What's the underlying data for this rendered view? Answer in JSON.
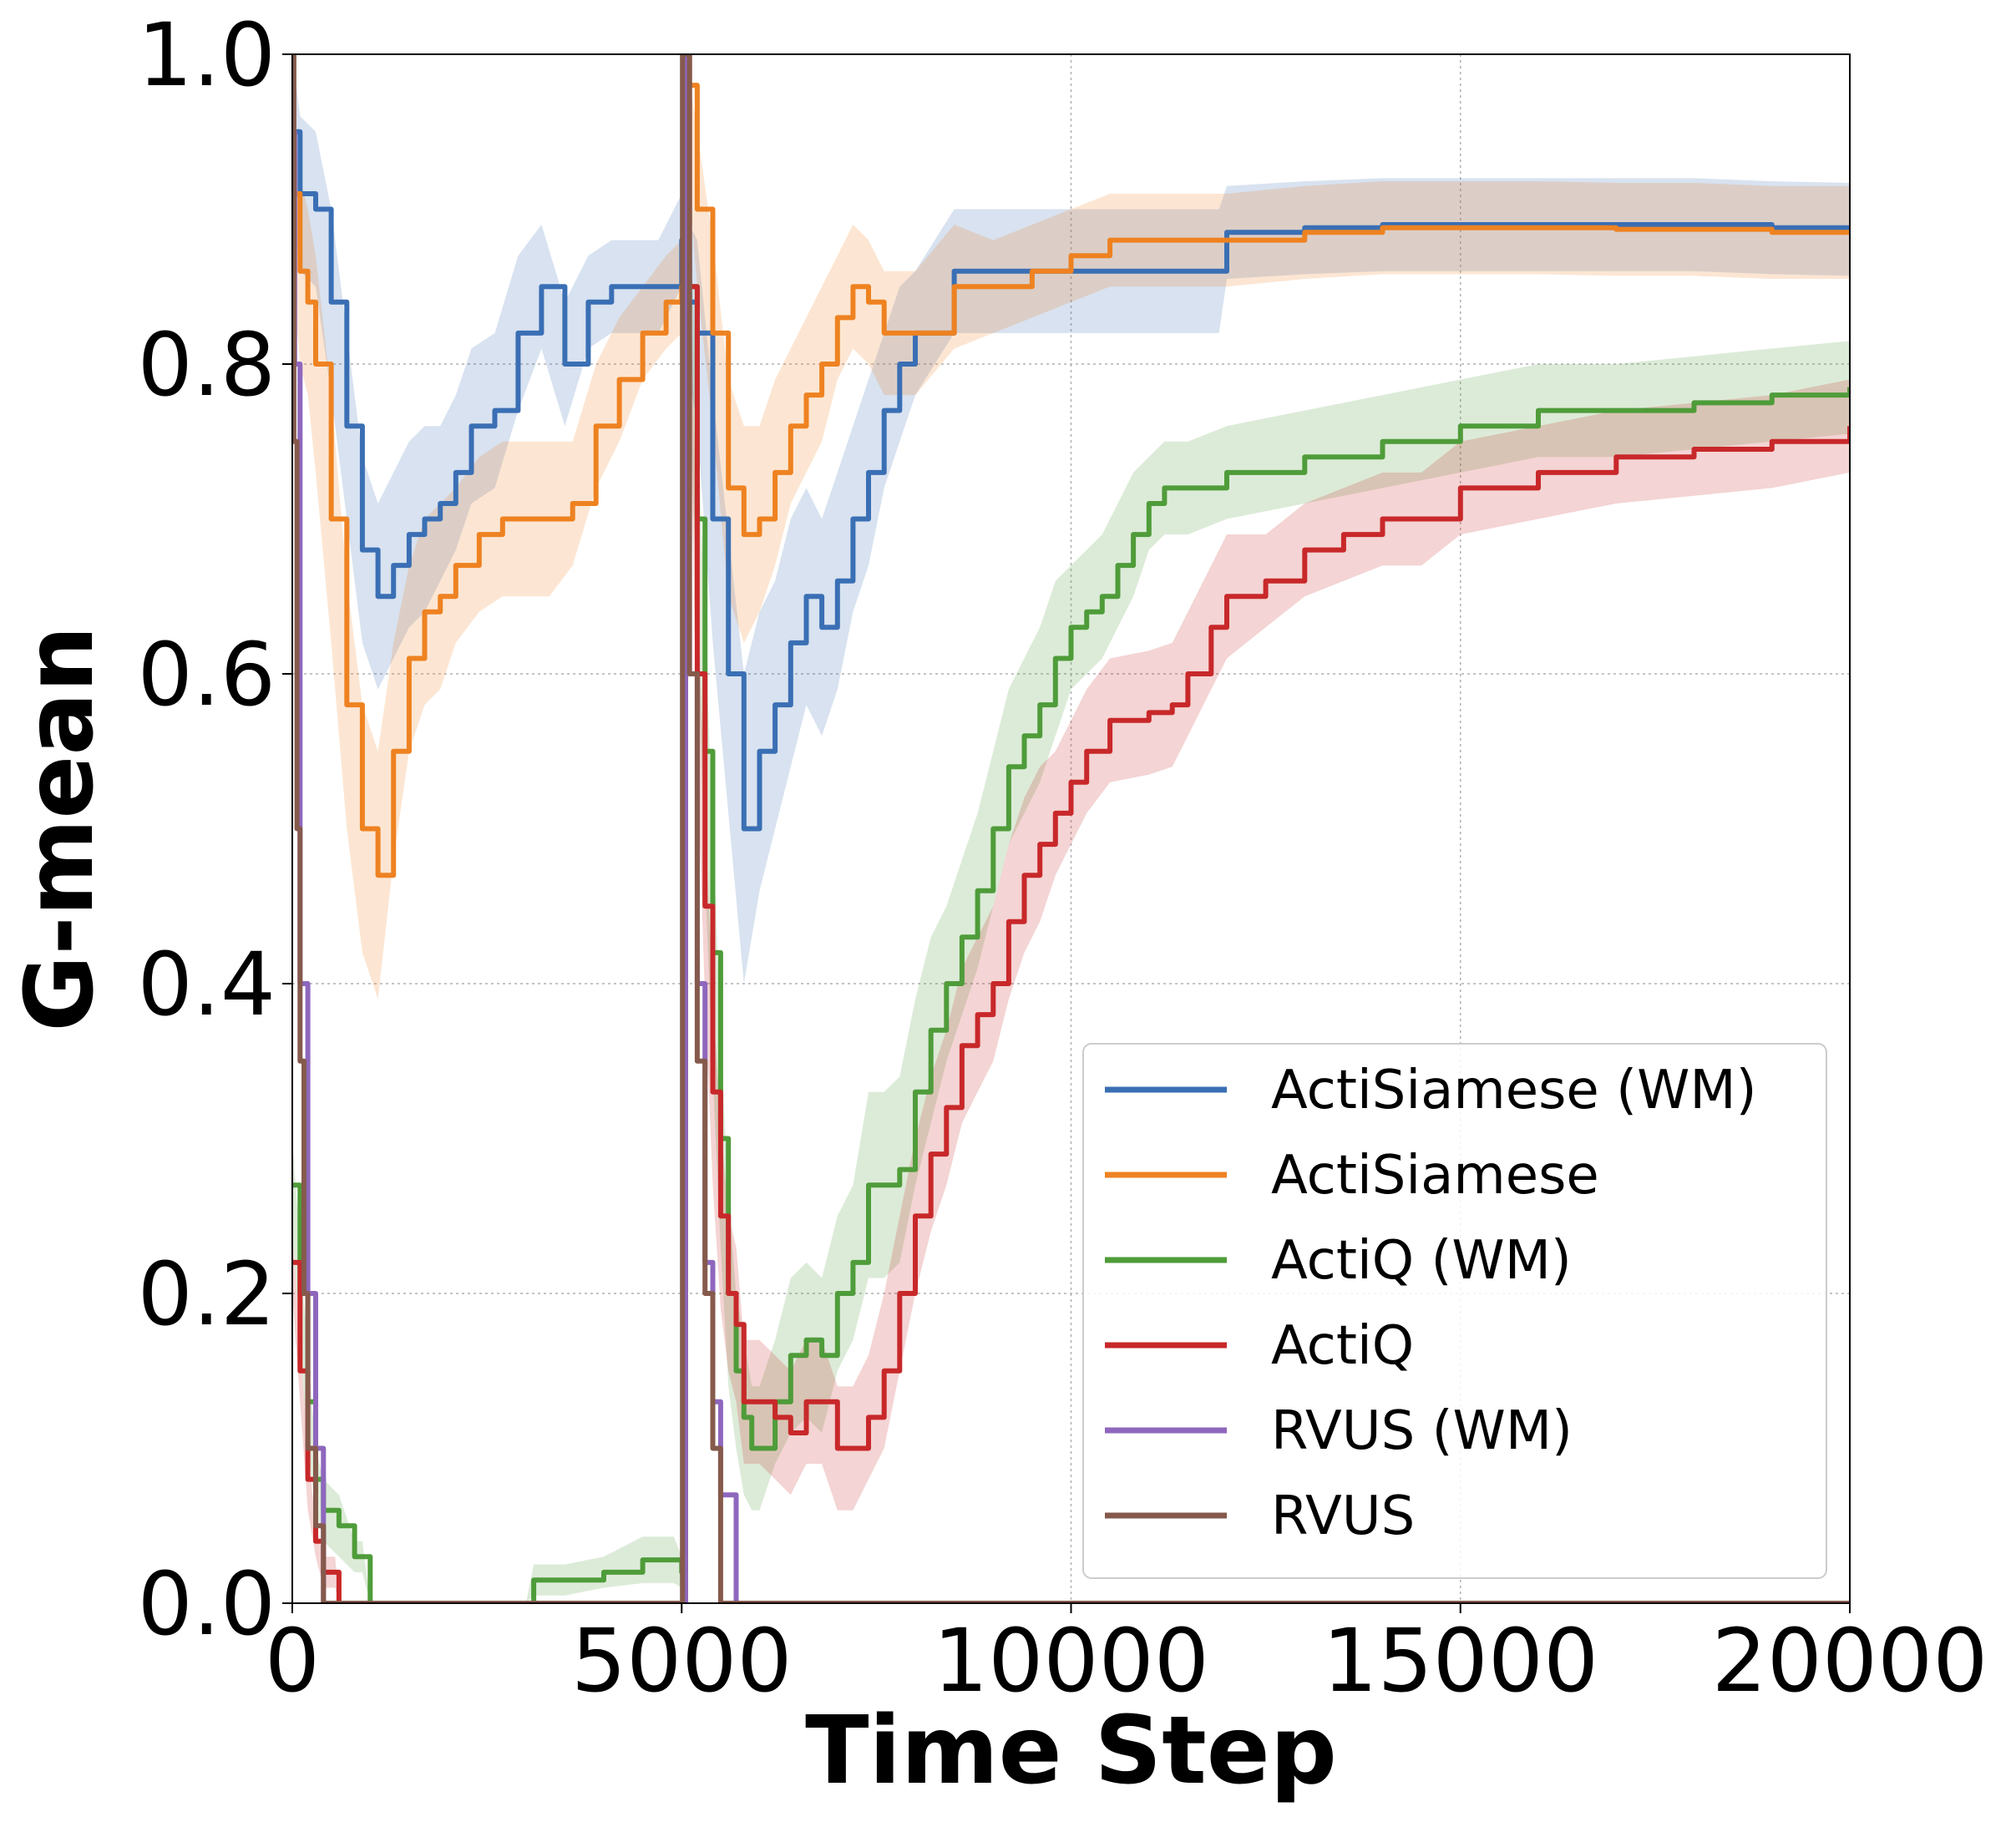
{
  "chart_data": {
    "type": "line",
    "title": "",
    "xlabel": "Time Step",
    "ylabel": "G-mean",
    "xlim": [
      0,
      20000
    ],
    "ylim": [
      0,
      1.0
    ],
    "xticks": [
      0,
      5000,
      10000,
      15000,
      20000
    ],
    "xtick_labels": [
      "0",
      "5000",
      "10000",
      "15000",
      "20000"
    ],
    "yticks": [
      0.0,
      0.2,
      0.4,
      0.6,
      0.8,
      1.0
    ],
    "ytick_labels": [
      "0.0",
      "0.2",
      "0.4",
      "0.6",
      "0.8",
      "1.0"
    ],
    "grid": true,
    "legend_position": "lower-right",
    "series": [
      {
        "name": "ActiSiamese (WM)",
        "color": "#3a6fb4",
        "x": [
          0,
          100,
          300,
          500,
          700,
          900,
          1100,
          1300,
          1500,
          1700,
          1900,
          2100,
          2300,
          2600,
          2900,
          3200,
          3500,
          3800,
          4100,
          4400,
          4700,
          5000,
          5100,
          5200,
          5400,
          5600,
          5800,
          6000,
          6200,
          6400,
          6600,
          6800,
          7000,
          7200,
          7400,
          7600,
          7800,
          8000,
          8500,
          9000,
          9500,
          10000,
          10500,
          11000,
          11500,
          11900,
          12000,
          13000,
          14000,
          15000,
          16000,
          17000,
          18000,
          19000,
          20000
        ],
        "y": [
          0.95,
          0.91,
          0.9,
          0.84,
          0.76,
          0.68,
          0.65,
          0.67,
          0.69,
          0.7,
          0.71,
          0.73,
          0.76,
          0.77,
          0.82,
          0.85,
          0.8,
          0.84,
          0.85,
          0.85,
          0.85,
          0.88,
          0.84,
          0.82,
          0.7,
          0.6,
          0.5,
          0.55,
          0.58,
          0.62,
          0.65,
          0.63,
          0.66,
          0.7,
          0.73,
          0.77,
          0.8,
          0.82,
          0.86,
          0.86,
          0.86,
          0.86,
          0.86,
          0.86,
          0.86,
          0.86,
          0.885,
          0.888,
          0.89,
          0.89,
          0.89,
          0.89,
          0.89,
          0.888,
          0.887
        ],
        "band": [
          0.05,
          0.05,
          0.05,
          0.06,
          0.06,
          0.06,
          0.06,
          0.06,
          0.06,
          0.06,
          0.05,
          0.05,
          0.05,
          0.05,
          0.05,
          0.04,
          0.04,
          0.03,
          0.03,
          0.03,
          0.03,
          0.03,
          0.05,
          0.06,
          0.08,
          0.09,
          0.1,
          0.09,
          0.08,
          0.08,
          0.07,
          0.07,
          0.07,
          0.06,
          0.06,
          0.05,
          0.05,
          0.04,
          0.04,
          0.04,
          0.04,
          0.04,
          0.04,
          0.04,
          0.04,
          0.04,
          0.03,
          0.03,
          0.03,
          0.03,
          0.03,
          0.03,
          0.03,
          0.03,
          0.03
        ]
      },
      {
        "name": "ActiSiamese",
        "color": "#ee8221",
        "x": [
          0,
          100,
          200,
          300,
          500,
          700,
          900,
          1100,
          1300,
          1500,
          1700,
          1900,
          2100,
          2400,
          2700,
          3000,
          3300,
          3600,
          3900,
          4200,
          4500,
          4800,
          5000,
          5050,
          5200,
          5400,
          5600,
          5800,
          6000,
          6200,
          6400,
          6600,
          6800,
          7000,
          7200,
          7400,
          7600,
          7800,
          8000,
          8500,
          9000,
          9500,
          10000,
          10500,
          11000,
          12000,
          13000,
          14000,
          15000,
          16000,
          17000,
          18000,
          19000,
          20000
        ],
        "y": [
          0.91,
          0.86,
          0.84,
          0.8,
          0.7,
          0.58,
          0.5,
          0.47,
          0.55,
          0.61,
          0.64,
          0.65,
          0.67,
          0.69,
          0.7,
          0.7,
          0.7,
          0.71,
          0.76,
          0.79,
          0.82,
          0.84,
          0.85,
          0.98,
          0.9,
          0.82,
          0.72,
          0.69,
          0.7,
          0.73,
          0.76,
          0.78,
          0.8,
          0.83,
          0.85,
          0.84,
          0.82,
          0.82,
          0.82,
          0.85,
          0.85,
          0.86,
          0.87,
          0.88,
          0.88,
          0.88,
          0.885,
          0.888,
          0.888,
          0.888,
          0.887,
          0.887,
          0.885,
          0.885
        ],
        "band": [
          0.05,
          0.06,
          0.06,
          0.07,
          0.08,
          0.08,
          0.08,
          0.08,
          0.07,
          0.06,
          0.06,
          0.06,
          0.05,
          0.05,
          0.05,
          0.05,
          0.05,
          0.04,
          0.04,
          0.04,
          0.03,
          0.03,
          0.03,
          0.04,
          0.05,
          0.06,
          0.07,
          0.07,
          0.06,
          0.06,
          0.05,
          0.05,
          0.05,
          0.04,
          0.04,
          0.04,
          0.04,
          0.04,
          0.04,
          0.04,
          0.03,
          0.03,
          0.03,
          0.03,
          0.03,
          0.03,
          0.03,
          0.03,
          0.03,
          0.03,
          0.03,
          0.03,
          0.03,
          0.03
        ]
      },
      {
        "name": "ActiQ (WM)",
        "color": "#4f9c3a",
        "x": [
          0,
          100,
          200,
          300,
          400,
          600,
          800,
          900,
          1000,
          2000,
          3000,
          3100,
          3500,
          4000,
          4500,
          4900,
          5000,
          5050,
          5100,
          5200,
          5300,
          5400,
          5500,
          5600,
          5700,
          5800,
          5900,
          6000,
          6200,
          6400,
          6600,
          6800,
          7000,
          7200,
          7400,
          7600,
          7800,
          8000,
          8200,
          8400,
          8600,
          8800,
          9000,
          9200,
          9400,
          9600,
          9800,
          10000,
          10200,
          10400,
          10600,
          10800,
          11000,
          11200,
          11500,
          12000,
          13000,
          14000,
          15000,
          16000,
          17000,
          18000,
          19000,
          20000
        ],
        "y": [
          0.27,
          0.2,
          0.13,
          0.08,
          0.06,
          0.05,
          0.03,
          0.03,
          0.0,
          0.0,
          0.0,
          0.015,
          0.015,
          0.02,
          0.028,
          0.028,
          0.02,
          1.0,
          0.85,
          0.7,
          0.55,
          0.42,
          0.3,
          0.2,
          0.15,
          0.12,
          0.1,
          0.1,
          0.13,
          0.16,
          0.17,
          0.16,
          0.2,
          0.22,
          0.27,
          0.27,
          0.28,
          0.33,
          0.37,
          0.4,
          0.43,
          0.46,
          0.5,
          0.54,
          0.56,
          0.58,
          0.61,
          0.63,
          0.64,
          0.65,
          0.67,
          0.69,
          0.71,
          0.72,
          0.72,
          0.73,
          0.74,
          0.75,
          0.76,
          0.77,
          0.77,
          0.775,
          0.78,
          0.785
        ],
        "band": [
          0.03,
          0.03,
          0.03,
          0.02,
          0.02,
          0.02,
          0.01,
          0.01,
          0.0,
          0.0,
          0.0,
          0.01,
          0.01,
          0.01,
          0.015,
          0.015,
          0.01,
          0.0,
          0.06,
          0.07,
          0.08,
          0.08,
          0.07,
          0.06,
          0.05,
          0.05,
          0.04,
          0.04,
          0.04,
          0.05,
          0.05,
          0.05,
          0.05,
          0.05,
          0.06,
          0.06,
          0.06,
          0.06,
          0.06,
          0.05,
          0.05,
          0.05,
          0.05,
          0.05,
          0.05,
          0.05,
          0.05,
          0.04,
          0.04,
          0.04,
          0.04,
          0.04,
          0.03,
          0.03,
          0.03,
          0.03,
          0.03,
          0.03,
          0.03,
          0.03,
          0.03,
          0.03,
          0.03,
          0.03
        ]
      },
      {
        "name": "ActiQ",
        "color": "#c8282a",
        "x": [
          0,
          100,
          200,
          300,
          400,
          500,
          550,
          600,
          1000,
          4900,
          5000,
          5050,
          5100,
          5200,
          5300,
          5400,
          5500,
          5600,
          5700,
          5800,
          6000,
          6200,
          6400,
          6600,
          6800,
          7000,
          7200,
          7400,
          7600,
          7800,
          8000,
          8200,
          8400,
          8600,
          8800,
          9000,
          9200,
          9400,
          9600,
          9800,
          10000,
          10200,
          10500,
          11000,
          11300,
          11500,
          11800,
          12000,
          12500,
          13000,
          13500,
          14000,
          14500,
          15000,
          16000,
          17000,
          18000,
          19000,
          20000
        ],
        "y": [
          0.22,
          0.15,
          0.08,
          0.04,
          0.02,
          0.02,
          0.02,
          0.0,
          0.0,
          0.0,
          0.0,
          1.0,
          0.85,
          0.6,
          0.45,
          0.33,
          0.25,
          0.2,
          0.18,
          0.13,
          0.13,
          0.12,
          0.11,
          0.13,
          0.13,
          0.1,
          0.1,
          0.12,
          0.15,
          0.2,
          0.25,
          0.29,
          0.32,
          0.36,
          0.38,
          0.4,
          0.44,
          0.47,
          0.49,
          0.51,
          0.53,
          0.55,
          0.57,
          0.575,
          0.58,
          0.6,
          0.63,
          0.65,
          0.66,
          0.68,
          0.69,
          0.7,
          0.7,
          0.72,
          0.73,
          0.74,
          0.745,
          0.75,
          0.76
        ],
        "band": [
          0.02,
          0.02,
          0.02,
          0.01,
          0.01,
          0.01,
          0.01,
          0.0,
          0.0,
          0.0,
          0.0,
          0.0,
          0.05,
          0.06,
          0.06,
          0.06,
          0.06,
          0.05,
          0.05,
          0.04,
          0.04,
          0.04,
          0.04,
          0.04,
          0.04,
          0.04,
          0.04,
          0.04,
          0.05,
          0.05,
          0.05,
          0.05,
          0.05,
          0.05,
          0.05,
          0.05,
          0.05,
          0.05,
          0.05,
          0.04,
          0.04,
          0.04,
          0.04,
          0.04,
          0.04,
          0.04,
          0.04,
          0.04,
          0.03,
          0.03,
          0.03,
          0.03,
          0.03,
          0.03,
          0.03,
          0.03,
          0.03,
          0.03,
          0.03
        ]
      },
      {
        "name": "RVUS (WM)",
        "color": "#8e67bd",
        "x": [
          0,
          30,
          100,
          200,
          300,
          400,
          4950,
          5000,
          5050,
          5100,
          5200,
          5300,
          5400,
          5500,
          5600,
          5700,
          20000
        ],
        "y": [
          0.95,
          0.8,
          0.4,
          0.2,
          0.1,
          0.0,
          0.0,
          0.0,
          1.0,
          0.6,
          0.4,
          0.22,
          0.13,
          0.07,
          0.07,
          0.0,
          0.0
        ],
        "band": [
          0,
          0,
          0,
          0,
          0,
          0,
          0,
          0,
          0,
          0,
          0,
          0,
          0,
          0,
          0,
          0,
          0
        ]
      },
      {
        "name": "RVUS",
        "color": "#855a4c",
        "x": [
          0,
          20,
          60,
          100,
          150,
          200,
          300,
          400,
          4950,
          5000,
          5010,
          5100,
          5200,
          5300,
          5400,
          5500,
          20000
        ],
        "y": [
          1.0,
          0.75,
          0.5,
          0.35,
          0.2,
          0.1,
          0.05,
          0.0,
          0.0,
          0.0,
          1.0,
          0.6,
          0.35,
          0.2,
          0.1,
          0.0,
          0.0
        ],
        "band": [
          0,
          0,
          0,
          0,
          0,
          0,
          0,
          0,
          0,
          0,
          0,
          0,
          0,
          0,
          0,
          0,
          0
        ]
      }
    ]
  }
}
